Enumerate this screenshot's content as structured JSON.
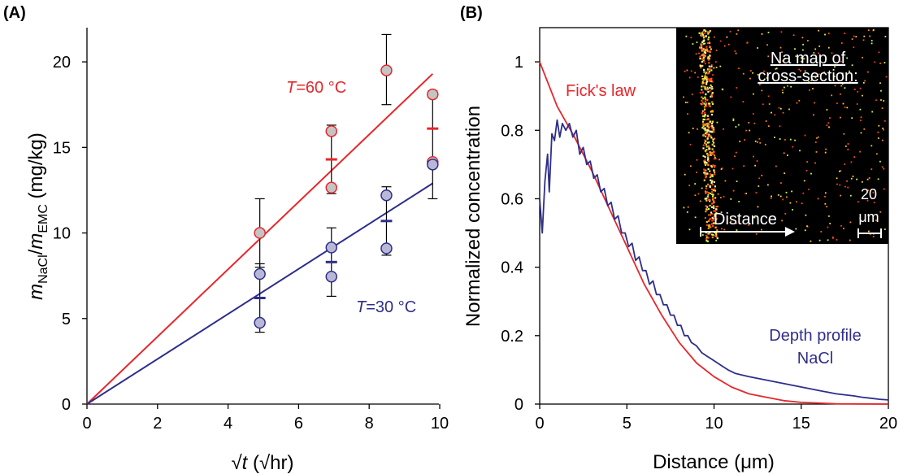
{
  "chart_data": [
    {
      "panel": "(A)",
      "type": "scatter",
      "xlabel_symbol": "√",
      "xlabel_var": "t",
      "xlabel_unit": " (√hr)",
      "ylabel_m1": "m",
      "ylabel_sub1": "NaCl",
      "ylabel_slash": "/",
      "ylabel_m2": "m",
      "ylabel_sub2": "EMC",
      "ylabel_unit": " (mg/kg)",
      "xlim": [
        0,
        10
      ],
      "ylim": [
        0,
        22
      ],
      "xticks": [
        "0",
        "2",
        "4",
        "6",
        "8",
        "10"
      ],
      "yticks": [
        "0",
        "5",
        "10",
        "15",
        "20"
      ],
      "grid": false,
      "series": [
        {
          "name": "T=60 °C",
          "label_var": "T",
          "label_rest": "=60 °C",
          "color": "#e8262b",
          "fill": "#c4c4c4",
          "points": [
            [
              4.9,
              10.0
            ],
            [
              6.93,
              15.95
            ],
            [
              6.93,
              12.65
            ],
            [
              8.49,
              19.5
            ],
            [
              9.8,
              18.1
            ],
            [
              9.8,
              14.15
            ]
          ],
          "means": [
            [
              6.93,
              14.3
            ],
            [
              9.8,
              16.1
            ]
          ],
          "errorbars": [
            [
              4.9,
              8.0,
              12.0
            ],
            [
              6.93,
              12.3,
              16.3
            ],
            [
              8.49,
              17.5,
              21.6
            ],
            [
              9.8,
              12.0,
              18.3
            ]
          ],
          "fit": [
            [
              0,
              0
            ],
            [
              9.8,
              19.3
            ]
          ]
        },
        {
          "name": "T=30 °C",
          "label_var": "T",
          "label_rest": "=30 °C",
          "color": "#2e2e8b",
          "fill": "#b8b8d6",
          "points": [
            [
              4.9,
              7.6
            ],
            [
              4.9,
              4.75
            ],
            [
              6.93,
              9.15
            ],
            [
              6.93,
              7.45
            ],
            [
              8.49,
              12.2
            ],
            [
              8.49,
              9.1
            ],
            [
              9.8,
              14.0
            ]
          ],
          "means": [
            [
              4.9,
              6.2
            ],
            [
              6.93,
              8.3
            ],
            [
              8.49,
              10.7
            ]
          ],
          "errorbars": [
            [
              4.9,
              4.2,
              8.2
            ],
            [
              6.93,
              6.3,
              10.3
            ],
            [
              8.49,
              8.7,
              12.7
            ]
          ],
          "fit": [
            [
              0,
              0
            ],
            [
              9.8,
              12.9
            ]
          ]
        }
      ]
    },
    {
      "panel": "(B)",
      "type": "line",
      "xlabel": "Distance (μm)",
      "ylabel": "Normalized concentration",
      "xlim": [
        0,
        20
      ],
      "ylim": [
        0,
        1.1
      ],
      "xticks": [
        "0",
        "5",
        "10",
        "15",
        "20"
      ],
      "yticks": [
        "0",
        "0.2",
        "0.4",
        "0.6",
        "0.8",
        "1"
      ],
      "grid": false,
      "series": [
        {
          "name": "Fick's law",
          "label": "Fick's law",
          "color": "#e8262b",
          "points": [
            [
              0,
              1.0
            ],
            [
              1,
              0.87
            ],
            [
              2,
              0.78
            ],
            [
              3,
              0.68
            ],
            [
              4,
              0.57
            ],
            [
              5,
              0.46
            ],
            [
              6,
              0.35
            ],
            [
              7,
              0.26
            ],
            [
              8,
              0.18
            ],
            [
              9,
              0.12
            ],
            [
              10,
              0.08
            ],
            [
              11,
              0.05
            ],
            [
              12,
              0.03
            ],
            [
              13,
              0.02
            ],
            [
              14,
              0.01
            ],
            [
              15,
              0.005
            ],
            [
              17,
              0.001
            ],
            [
              20,
              0.0
            ]
          ]
        },
        {
          "name": "Depth profile NaCl",
          "label_line1": "Depth profile",
          "label_line2": "NaCl",
          "color": "#2e2e8b",
          "points": [
            [
              0,
              0.6
            ],
            [
              0.15,
              0.5
            ],
            [
              0.3,
              0.65
            ],
            [
              0.45,
              0.73
            ],
            [
              0.55,
              0.62
            ],
            [
              0.7,
              0.79
            ],
            [
              0.85,
              0.77
            ],
            [
              1.0,
              0.83
            ],
            [
              1.15,
              0.78
            ],
            [
              1.3,
              0.82
            ],
            [
              1.5,
              0.8
            ],
            [
              1.7,
              0.82
            ],
            [
              1.9,
              0.78
            ],
            [
              2.1,
              0.8
            ],
            [
              2.3,
              0.73
            ],
            [
              2.5,
              0.75
            ],
            [
              2.7,
              0.7
            ],
            [
              2.9,
              0.71
            ],
            [
              3.1,
              0.66
            ],
            [
              3.3,
              0.67
            ],
            [
              3.5,
              0.62
            ],
            [
              3.7,
              0.63
            ],
            [
              3.9,
              0.58
            ],
            [
              4.1,
              0.59
            ],
            [
              4.3,
              0.54
            ],
            [
              4.5,
              0.55
            ],
            [
              4.7,
              0.5
            ],
            [
              4.9,
              0.5
            ],
            [
              5.1,
              0.46
            ],
            [
              5.3,
              0.47
            ],
            [
              5.5,
              0.42
            ],
            [
              5.7,
              0.43
            ],
            [
              5.9,
              0.39
            ],
            [
              6.1,
              0.39
            ],
            [
              6.3,
              0.35
            ],
            [
              6.5,
              0.36
            ],
            [
              6.7,
              0.32
            ],
            [
              6.9,
              0.32
            ],
            [
              7.1,
              0.29
            ],
            [
              7.3,
              0.29
            ],
            [
              7.5,
              0.26
            ],
            [
              7.7,
              0.26
            ],
            [
              7.9,
              0.23
            ],
            [
              8.1,
              0.23
            ],
            [
              8.3,
              0.2
            ],
            [
              8.5,
              0.2
            ],
            [
              8.7,
              0.18
            ],
            [
              9.0,
              0.17
            ],
            [
              9.3,
              0.15
            ],
            [
              9.6,
              0.14
            ],
            [
              9.9,
              0.13
            ],
            [
              10.2,
              0.12
            ],
            [
              10.5,
              0.11
            ],
            [
              10.8,
              0.1
            ],
            [
              11.2,
              0.09
            ],
            [
              11.6,
              0.085
            ],
            [
              12.0,
              0.08
            ],
            [
              12.5,
              0.075
            ],
            [
              13.0,
              0.07
            ],
            [
              13.5,
              0.065
            ],
            [
              14.0,
              0.06
            ],
            [
              14.5,
              0.055
            ],
            [
              15.0,
              0.05
            ],
            [
              15.5,
              0.045
            ],
            [
              16.0,
              0.04
            ],
            [
              16.5,
              0.035
            ],
            [
              17.0,
              0.03
            ],
            [
              17.5,
              0.027
            ],
            [
              18.0,
              0.024
            ],
            [
              18.5,
              0.02
            ],
            [
              19.0,
              0.017
            ],
            [
              19.5,
              0.014
            ],
            [
              20.0,
              0.012
            ]
          ]
        }
      ],
      "inset": {
        "title_line1": "Na map of",
        "title_line2": "cross-section:",
        "arrow_label": "Distance",
        "scale_value": "20",
        "scale_unit": "μm",
        "background": "#000000"
      }
    }
  ]
}
